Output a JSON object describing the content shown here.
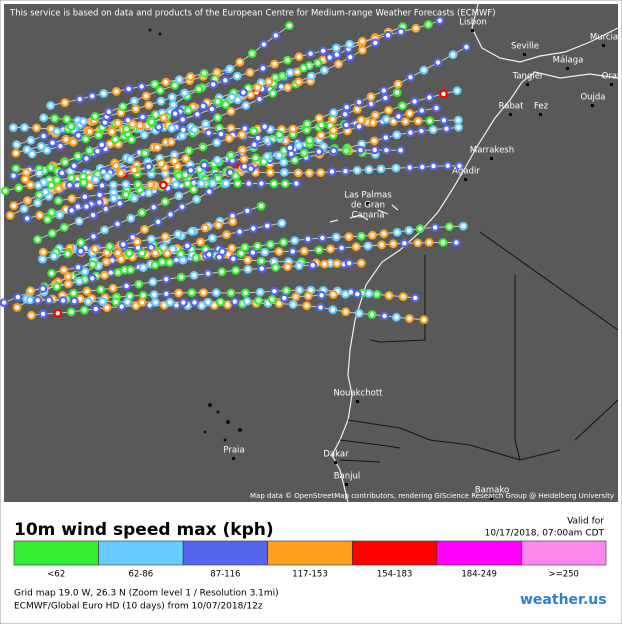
{
  "header": {
    "notice": "This service is based on data and products of the European Centre for Medium-range Weather Forecasts (ECMWF)"
  },
  "map": {
    "cities": [
      {
        "lines": [
          "Lisbon"
        ]
      },
      {
        "lines": [
          "Seville"
        ]
      },
      {
        "lines": [
          "Murcia"
        ]
      },
      {
        "lines": [
          "Málaga"
        ]
      },
      {
        "lines": [
          "Tangier"
        ]
      },
      {
        "lines": [
          "Oran"
        ]
      },
      {
        "lines": [
          "Oujda"
        ]
      },
      {
        "lines": [
          "Rabat"
        ]
      },
      {
        "lines": [
          "Fez"
        ]
      },
      {
        "lines": [
          "Marrakesh"
        ]
      },
      {
        "lines": [
          "Agadir"
        ]
      },
      {
        "lines": [
          "Las Palmas",
          "de Gran",
          "Canaria"
        ]
      },
      {
        "lines": [
          "Nouakchott"
        ]
      },
      {
        "lines": [
          "Praia"
        ]
      },
      {
        "lines": [
          "Dakar"
        ]
      },
      {
        "lines": [
          "Banjul"
        ]
      },
      {
        "lines": [
          "Bamako"
        ]
      }
    ],
    "attribution": "Map data © OpenStreetMap contributors, rendering GIScience Research Group @ Heidelberg University"
  },
  "legend": {
    "title": "10m wind speed max (kph)",
    "valid_label": "Valid for",
    "valid_time": "10/17/2018, 07:00am CDT",
    "bins": [
      {
        "label": "<62",
        "color": "#33ee33"
      },
      {
        "label": "62-86",
        "color": "#66ccff"
      },
      {
        "label": "87-116",
        "color": "#5566ee"
      },
      {
        "label": "117-153",
        "color": "#ffa020"
      },
      {
        "label": "154-183",
        "color": "#ff0000"
      },
      {
        "label": "184-249",
        "color": "#ff00ff"
      },
      {
        "label": ">=250",
        "color": "#ff88ee"
      }
    ],
    "grid_info": "Grid map 19.0 W, 26.3 N (Zoom level 1 / Resolution 3.1mi)",
    "model_info": "ECMWF/Global Euro HD (10 days) from 10/07/2018/12z",
    "logo": "weather.us"
  }
}
